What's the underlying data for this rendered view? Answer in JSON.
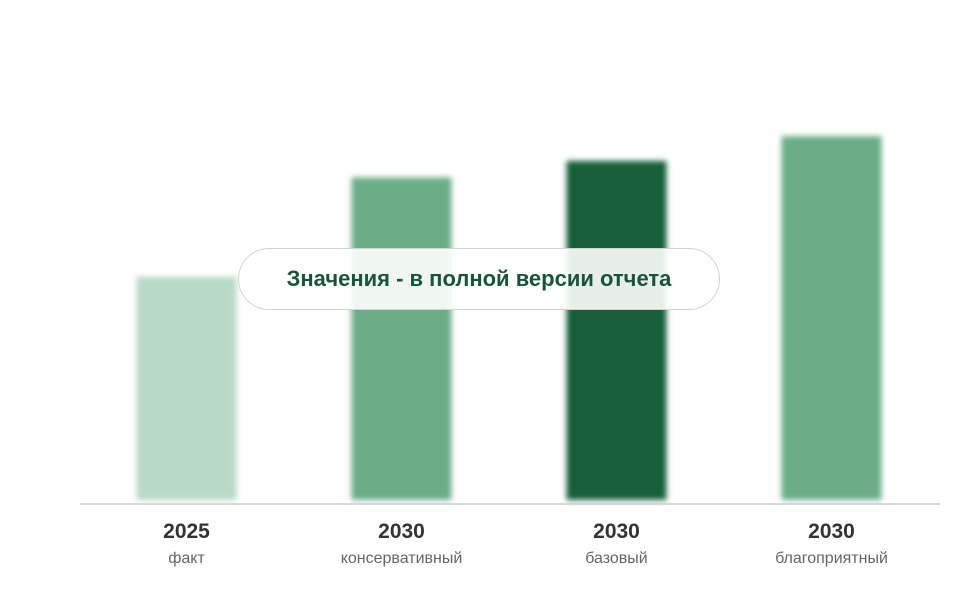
{
  "chart_data": {
    "type": "bar",
    "categories": [
      {
        "year": "2025",
        "label": "факт"
      },
      {
        "year": "2030",
        "label": "консервативный"
      },
      {
        "year": "2030",
        "label": "базовый"
      },
      {
        "year": "2030",
        "label": "благоприятный"
      }
    ],
    "values": [
      2.7,
      3.9,
      4.1,
      4.4
    ],
    "colors": [
      "#b9d9c6",
      "#6bad87",
      "#175e39",
      "#6bad87"
    ],
    "ylim": [
      0,
      5.2
    ],
    "grid": true,
    "values_hidden": true
  },
  "overlay": {
    "text": "Значения - в полной версии отчета"
  }
}
